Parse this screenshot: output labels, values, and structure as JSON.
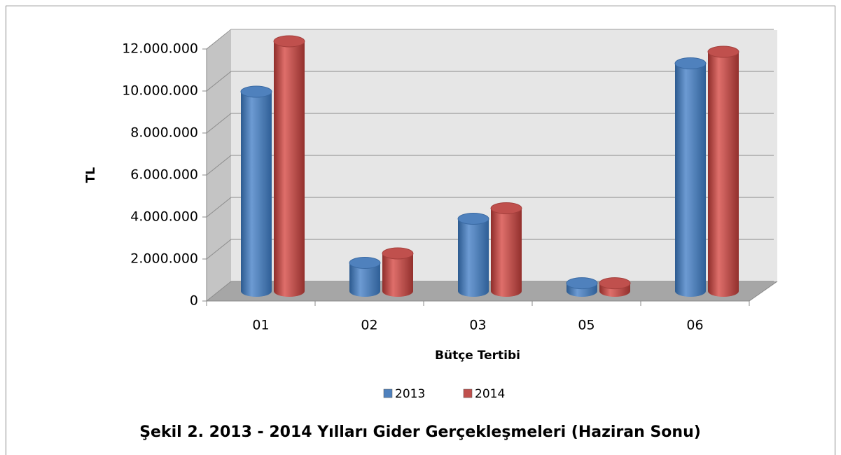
{
  "chart_data": {
    "type": "bar3d",
    "title": "Şekil 2. 2013 - 2014 Yılları Gider Gerçekleşmeleri (Haziran Sonu)",
    "x_label": "Bütçe Tertibi",
    "y_label": "TL",
    "categories": [
      "01",
      "02",
      "03",
      "05",
      "06"
    ],
    "series": [
      {
        "name": "2013",
        "color": "#4f81bd",
        "values": [
          9500000,
          1350000,
          3450000,
          380000,
          10850000
        ]
      },
      {
        "name": "2014",
        "color": "#c0504d",
        "values": [
          11900000,
          1800000,
          3950000,
          380000,
          11400000
        ]
      }
    ],
    "ylim": [
      0,
      12000000
    ],
    "yticks": [
      0,
      {
        "value": 2000000,
        "label": "2.000.000"
      },
      {
        "value": 4000000,
        "label": "4.000.000"
      },
      {
        "value": 6000000,
        "label": "6.000.000"
      },
      {
        "value": 8000000,
        "label": "8.000.000"
      },
      {
        "value": 10000000,
        "label": "10.000.000"
      },
      {
        "value": 12000000,
        "label": "12.000.000"
      }
    ],
    "grid": true,
    "legend": "bottom"
  }
}
